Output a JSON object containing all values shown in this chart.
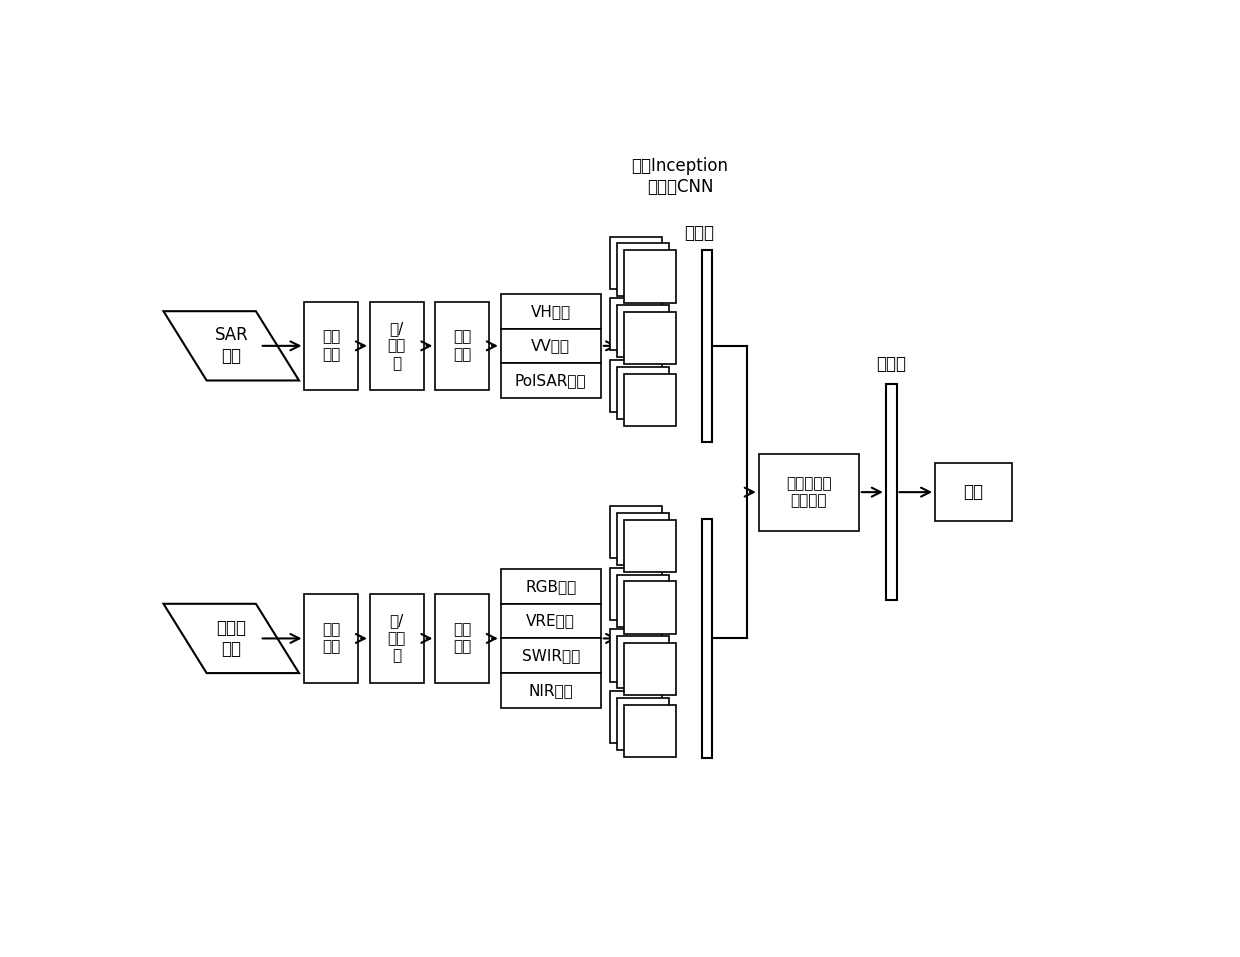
{
  "title_top": "基于Inception\n的分支CNN",
  "title_feature_top": "特征图",
  "title_feature_right": "特征图",
  "sar_label": "SAR\n数据",
  "multi_label": "多光谱\n数据",
  "sar_band_sel": "波段\n选择",
  "sar_upsample": "上/\n下采\n样",
  "sar_band_comb": "波段\n组合",
  "sar_bands": [
    "VH波段",
    "VV波段",
    "PolSAR波段"
  ],
  "multi_band_sel": "波段\n选择",
  "multi_upsample": "上/\n下采\n样",
  "multi_band_comb": "波段\n组合",
  "multi_bands": [
    "RGB波段",
    "VRE波段",
    "SWIR波段",
    "NIR波段"
  ],
  "dense_label": "增强型稠密\n卷积网络",
  "classify_label": "分类",
  "bg_color": "#ffffff",
  "font_size": 12,
  "small_font": 11
}
